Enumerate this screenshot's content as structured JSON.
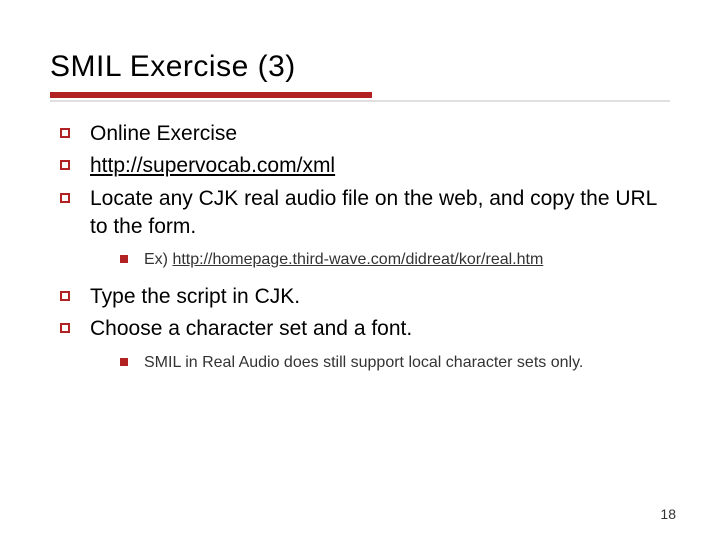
{
  "title": "SMIL Exercise (3)",
  "colors": {
    "accent": "#b22222",
    "background": "#ffffff",
    "text": "#000000",
    "subtext": "#333333",
    "rule_gray": "#e0e0e0"
  },
  "bullets_a": [
    {
      "text": "Online Exercise",
      "underline": false
    },
    {
      "text": "http://supervocab.com/xml",
      "underline": true
    },
    {
      "text": "Locate any CJK real audio file on the web, and copy the URL to the form.",
      "underline": false
    }
  ],
  "sub_a": {
    "prefix": "Ex) ",
    "link": "http://homepage.third-wave.com/didreat/kor/real.htm"
  },
  "bullets_b": [
    {
      "text": "Type the script in CJK."
    },
    {
      "text": "Choose a character set and a font."
    }
  ],
  "sub_b": {
    "text": "SMIL in Real Audio does still support local character sets only."
  },
  "page_number": "18"
}
